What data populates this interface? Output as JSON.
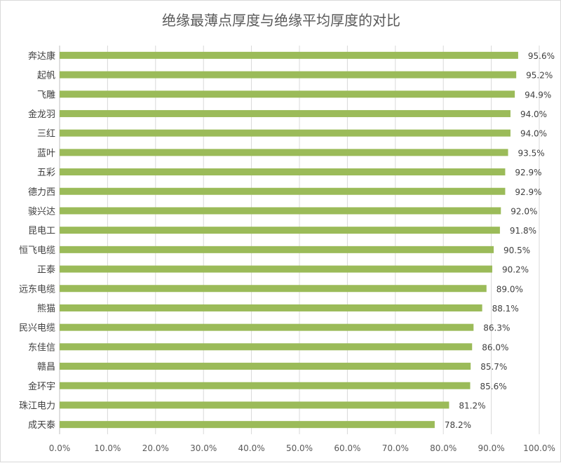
{
  "chart_data": {
    "type": "bar",
    "orientation": "horizontal",
    "title": "绝缘最薄点厚度与绝缘平均厚度的对比",
    "xlabel": "",
    "ylabel": "",
    "xlim": [
      0,
      100
    ],
    "x_ticks": [
      "0.0%",
      "10.0%",
      "20.0%",
      "30.0%",
      "40.0%",
      "50.0%",
      "60.0%",
      "70.0%",
      "80.0%",
      "90.0%",
      "100.0%"
    ],
    "grid": "vertical",
    "legend": "none",
    "bar_color": "#9bbb59",
    "categories": [
      "奔达康",
      "起帆",
      "飞雕",
      "金龙羽",
      "三红",
      "蓝叶",
      "五彩",
      "德力西",
      "骏兴达",
      "昆电工",
      "恒飞电缆",
      "正泰",
      "远东电缆",
      "熊猫",
      "民兴电缆",
      "东佳信",
      "赣昌",
      "金环宇",
      "珠江电力",
      "成天泰"
    ],
    "values": [
      95.6,
      95.2,
      94.9,
      94.0,
      94.0,
      93.5,
      92.9,
      92.9,
      92.0,
      91.8,
      90.5,
      90.2,
      89.0,
      88.1,
      86.3,
      86.0,
      85.7,
      85.6,
      81.2,
      78.2
    ],
    "value_labels": [
      "95.6%",
      "95.2%",
      "94.9%",
      "94.0%",
      "94.0%",
      "93.5%",
      "92.9%",
      "92.9%",
      "92.0%",
      "91.8%",
      "90.5%",
      "90.2%",
      "89.0%",
      "88.1%",
      "86.3%",
      "86.0%",
      "85.7%",
      "85.6%",
      "81.2%",
      "78.2%"
    ]
  }
}
